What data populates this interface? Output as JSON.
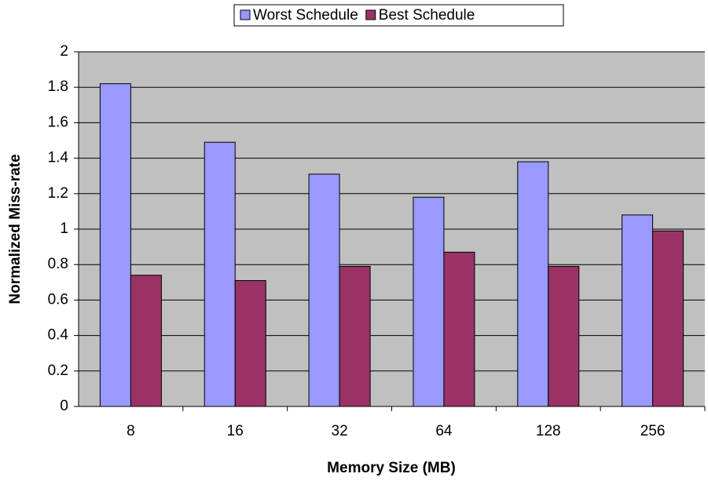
{
  "chart_data": {
    "type": "bar",
    "x_label": "Memory Size (MB)",
    "y_label": "Normalized Miss-rate",
    "categories": [
      "8",
      "16",
      "32",
      "64",
      "128",
      "256"
    ],
    "series": [
      {
        "name": "Worst Schedule",
        "color": "#9999ff",
        "values": [
          1.82,
          1.49,
          1.31,
          1.18,
          1.38,
          1.08
        ]
      },
      {
        "name": "Best Schedule",
        "color": "#993366",
        "values": [
          0.74,
          0.71,
          0.79,
          0.87,
          0.79,
          0.99
        ]
      }
    ],
    "ylim": [
      0,
      2
    ],
    "yticks": [
      0,
      0.2,
      0.4,
      0.6,
      0.8,
      1,
      1.2,
      1.4,
      1.6,
      1.8,
      2
    ],
    "grid": true,
    "plot_background": "#c0c0c0",
    "legend": "top"
  }
}
